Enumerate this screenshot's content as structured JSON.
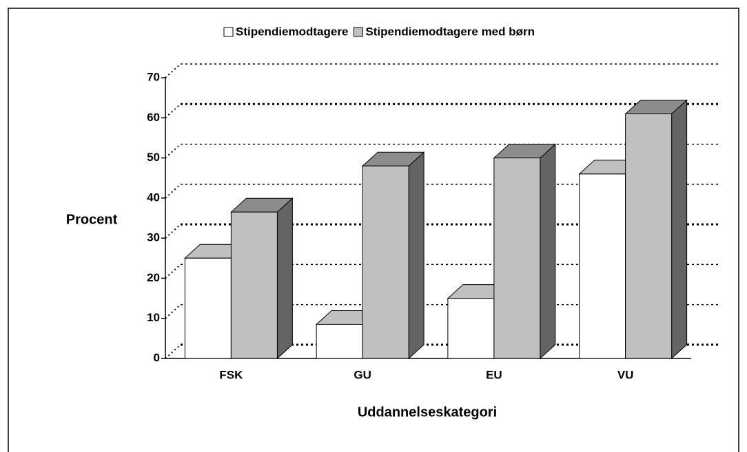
{
  "chart_data": {
    "type": "bar3d",
    "categories": [
      "FSK",
      "GU",
      "EU",
      "VU"
    ],
    "series": [
      {
        "name": "Stipendiemodtagere",
        "color": "#ffffff",
        "values": [
          25,
          8.5,
          15,
          46
        ]
      },
      {
        "name": "Stipendiemodtagere med børn",
        "color": "#c0c0c0",
        "values": [
          36.5,
          48,
          50,
          61
        ]
      }
    ],
    "ylabel": "Procent",
    "xlabel": "Uddannelseskategori",
    "ylim": [
      0,
      70
    ],
    "yticks": [
      0,
      10,
      20,
      30,
      40,
      50,
      60,
      70
    ],
    "grid": true,
    "legend": "top"
  }
}
